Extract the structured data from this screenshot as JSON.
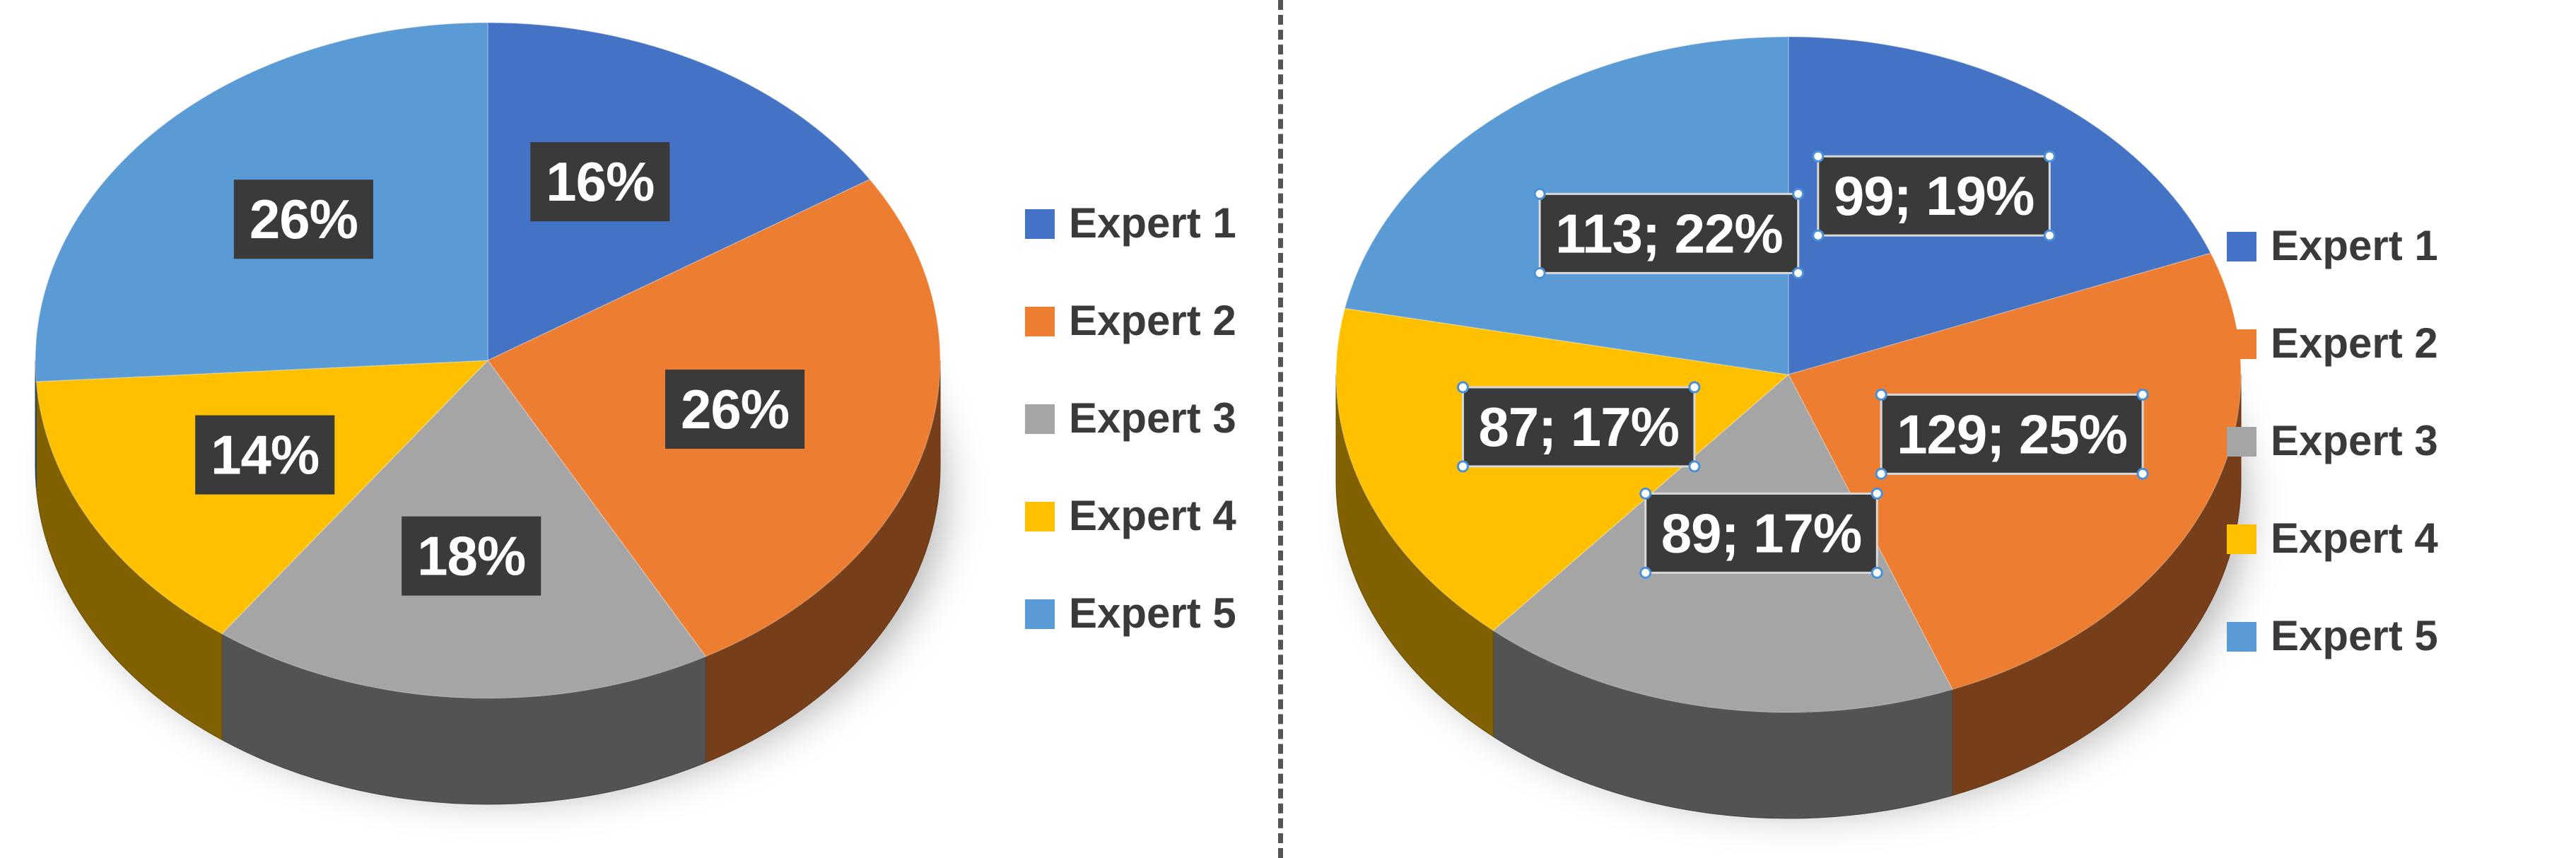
{
  "chart_data": [
    {
      "type": "pie",
      "style": "3d",
      "categories": [
        "Expert 1",
        "Expert 2",
        "Expert 3",
        "Expert 4",
        "Expert 5"
      ],
      "values": [
        16,
        26,
        18,
        14,
        26
      ],
      "labels": [
        "16%",
        "26%",
        "18%",
        "14%",
        "26%"
      ],
      "legend": [
        "Expert 1",
        "Expert 2",
        "Expert 3",
        "Expert 4",
        "Expert 5"
      ],
      "legend_position": "right"
    },
    {
      "type": "pie",
      "style": "3d",
      "categories": [
        "Expert 1",
        "Expert 2",
        "Expert 3",
        "Expert 4",
        "Expert 5"
      ],
      "values": [
        99,
        129,
        89,
        87,
        113
      ],
      "labels": [
        "99; 19%",
        "129; 25%",
        "89; 17%",
        "87; 17%",
        "113; 22%"
      ],
      "legend": [
        "Expert 1",
        "Expert 2",
        "Expert 3",
        "Expert 4",
        "Expert 5"
      ],
      "legend_position": "right"
    }
  ],
  "colors": {
    "Expert 1": "#4472C4",
    "Expert 2": "#ED7D31",
    "Expert 3": "#A5A5A5",
    "Expert 4": "#FFC000",
    "Expert 5": "#5B9BD5",
    "label_box": "#3a3a3a",
    "divider": "#555555"
  }
}
